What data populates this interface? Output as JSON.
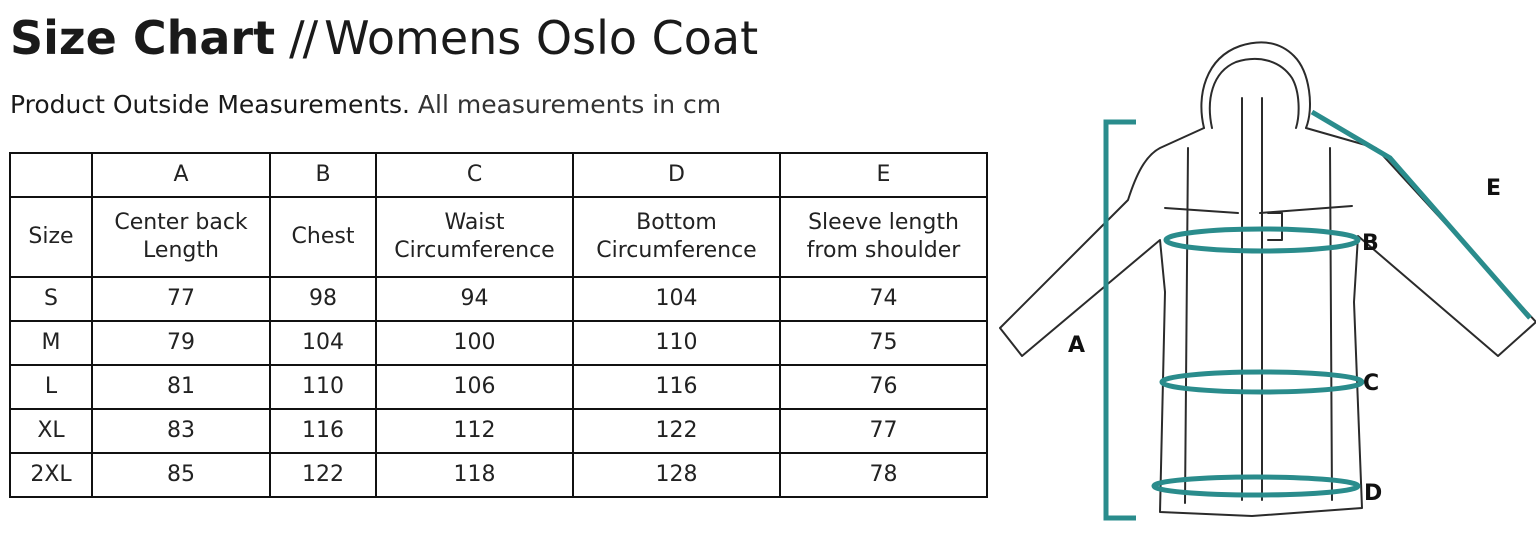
{
  "header": {
    "title_bold": "Size Chart",
    "title_sep": "//",
    "title_product": "Womens Oslo Coat",
    "subtitle_part1": "Product Outside Measurements.",
    "subtitle_part2": "All measurements in cm"
  },
  "table": {
    "letters": [
      "",
      "A",
      "B",
      "C",
      "D",
      "E"
    ],
    "labels": [
      [
        "Size"
      ],
      [
        "Center back",
        "Length"
      ],
      [
        "Chest"
      ],
      [
        "Waist",
        "Circumference"
      ],
      [
        "Bottom",
        "Circumference"
      ],
      [
        "Sleeve length",
        "from shoulder"
      ]
    ],
    "rows": [
      [
        "S",
        "77",
        "98",
        "94",
        "104",
        "74"
      ],
      [
        "M",
        "79",
        "104",
        "100",
        "110",
        "75"
      ],
      [
        "L",
        "81",
        "110",
        "106",
        "116",
        "76"
      ],
      [
        "XL",
        "83",
        "116",
        "112",
        "122",
        "77"
      ],
      [
        "2XL",
        "85",
        "122",
        "118",
        "128",
        "78"
      ]
    ]
  },
  "diagram": {
    "labels": {
      "A": "A",
      "B": "B",
      "C": "C",
      "D": "D",
      "E": "E"
    },
    "accent_color": "#2a8c8c",
    "line_color": "#2b2b2b"
  }
}
